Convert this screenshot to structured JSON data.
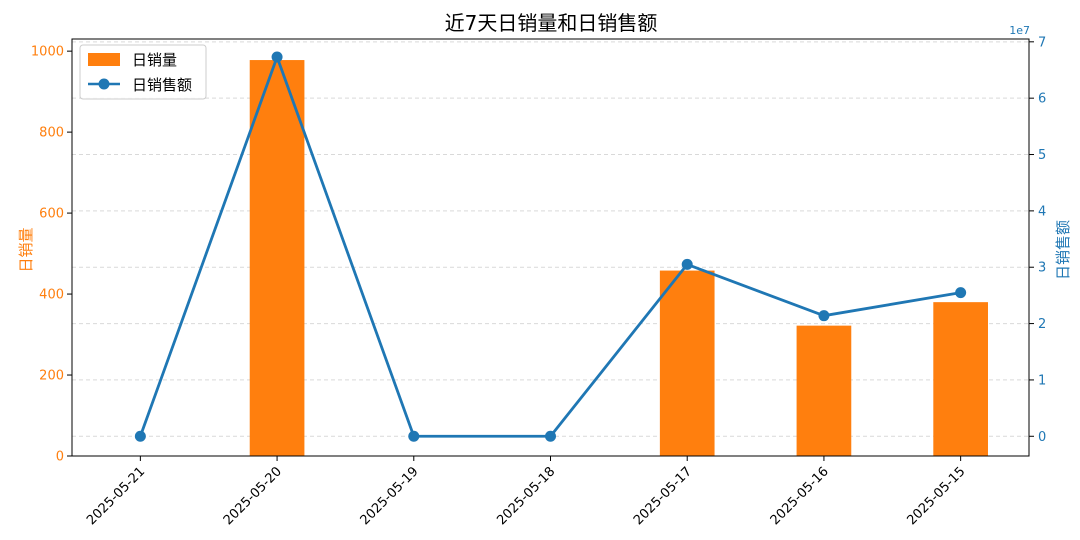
{
  "chart_data": {
    "type": "bar+line",
    "title": "近7天日销量和日销售额",
    "xlabel": "",
    "categories": [
      "2025-05-21",
      "2025-05-20",
      "2025-05-19",
      "2025-05-18",
      "2025-05-17",
      "2025-05-16",
      "2025-05-15"
    ],
    "y_left": {
      "label": "日销量",
      "lim": [
        0,
        1030
      ],
      "ticks": [
        "0",
        "200",
        "400",
        "600",
        "800",
        "1000"
      ],
      "tick_values": [
        0,
        200,
        400,
        600,
        800,
        1000
      ],
      "color": "#ff7f0e"
    },
    "y_right": {
      "label": "日销售额",
      "lim": [
        -0.35,
        7.05
      ],
      "scale_label": "1e7",
      "ticks": [
        "0",
        "1",
        "2",
        "3",
        "4",
        "5",
        "6",
        "7"
      ],
      "tick_values": [
        0,
        1,
        2,
        3,
        4,
        5,
        6,
        7
      ],
      "color": "#1f77b4"
    },
    "series": [
      {
        "name": "日销量",
        "type": "bar",
        "axis": "left",
        "color": "#ff7f0e",
        "values": [
          0,
          978,
          0,
          0,
          458,
          322,
          380
        ]
      },
      {
        "name": "日销售额",
        "type": "line",
        "axis": "right",
        "color": "#1f77b4",
        "values": [
          0,
          6.73,
          0,
          0,
          3.05,
          2.14,
          2.55
        ]
      }
    ],
    "grid": true,
    "grid_style": "dashed",
    "legend_position": "top-left"
  }
}
